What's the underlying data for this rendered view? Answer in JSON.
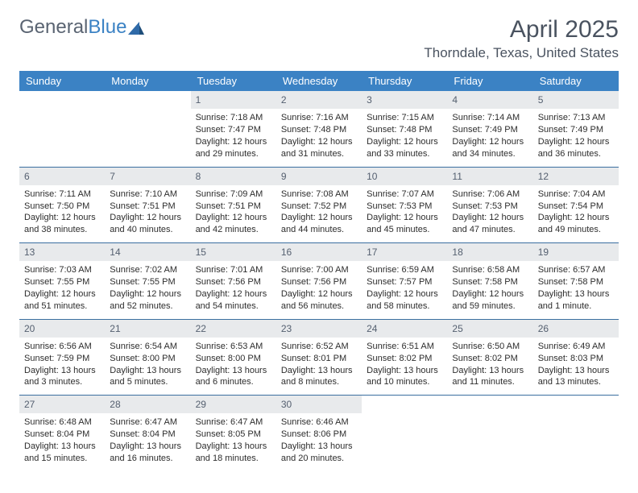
{
  "logo": {
    "general": "General",
    "blue": "Blue"
  },
  "title": {
    "month": "April 2025",
    "location": "Thorndale, Texas, United States"
  },
  "dayNames": [
    "Sunday",
    "Monday",
    "Tuesday",
    "Wednesday",
    "Thursday",
    "Friday",
    "Saturday"
  ],
  "colors": {
    "header_bg": "#3b82c4",
    "header_text": "#ffffff",
    "daynum_bg": "#e8eaec",
    "daynum_text": "#556070",
    "row_border": "#3b6fa0",
    "body_text": "#2d2d2d",
    "title_text": "#4a5360"
  },
  "weeks": [
    [
      null,
      null,
      {
        "n": "1",
        "sunrise": "Sunrise: 7:18 AM",
        "sunset": "Sunset: 7:47 PM",
        "day1": "Daylight: 12 hours",
        "day2": "and 29 minutes."
      },
      {
        "n": "2",
        "sunrise": "Sunrise: 7:16 AM",
        "sunset": "Sunset: 7:48 PM",
        "day1": "Daylight: 12 hours",
        "day2": "and 31 minutes."
      },
      {
        "n": "3",
        "sunrise": "Sunrise: 7:15 AM",
        "sunset": "Sunset: 7:48 PM",
        "day1": "Daylight: 12 hours",
        "day2": "and 33 minutes."
      },
      {
        "n": "4",
        "sunrise": "Sunrise: 7:14 AM",
        "sunset": "Sunset: 7:49 PM",
        "day1": "Daylight: 12 hours",
        "day2": "and 34 minutes."
      },
      {
        "n": "5",
        "sunrise": "Sunrise: 7:13 AM",
        "sunset": "Sunset: 7:49 PM",
        "day1": "Daylight: 12 hours",
        "day2": "and 36 minutes."
      }
    ],
    [
      {
        "n": "6",
        "sunrise": "Sunrise: 7:11 AM",
        "sunset": "Sunset: 7:50 PM",
        "day1": "Daylight: 12 hours",
        "day2": "and 38 minutes."
      },
      {
        "n": "7",
        "sunrise": "Sunrise: 7:10 AM",
        "sunset": "Sunset: 7:51 PM",
        "day1": "Daylight: 12 hours",
        "day2": "and 40 minutes."
      },
      {
        "n": "8",
        "sunrise": "Sunrise: 7:09 AM",
        "sunset": "Sunset: 7:51 PM",
        "day1": "Daylight: 12 hours",
        "day2": "and 42 minutes."
      },
      {
        "n": "9",
        "sunrise": "Sunrise: 7:08 AM",
        "sunset": "Sunset: 7:52 PM",
        "day1": "Daylight: 12 hours",
        "day2": "and 44 minutes."
      },
      {
        "n": "10",
        "sunrise": "Sunrise: 7:07 AM",
        "sunset": "Sunset: 7:53 PM",
        "day1": "Daylight: 12 hours",
        "day2": "and 45 minutes."
      },
      {
        "n": "11",
        "sunrise": "Sunrise: 7:06 AM",
        "sunset": "Sunset: 7:53 PM",
        "day1": "Daylight: 12 hours",
        "day2": "and 47 minutes."
      },
      {
        "n": "12",
        "sunrise": "Sunrise: 7:04 AM",
        "sunset": "Sunset: 7:54 PM",
        "day1": "Daylight: 12 hours",
        "day2": "and 49 minutes."
      }
    ],
    [
      {
        "n": "13",
        "sunrise": "Sunrise: 7:03 AM",
        "sunset": "Sunset: 7:55 PM",
        "day1": "Daylight: 12 hours",
        "day2": "and 51 minutes."
      },
      {
        "n": "14",
        "sunrise": "Sunrise: 7:02 AM",
        "sunset": "Sunset: 7:55 PM",
        "day1": "Daylight: 12 hours",
        "day2": "and 52 minutes."
      },
      {
        "n": "15",
        "sunrise": "Sunrise: 7:01 AM",
        "sunset": "Sunset: 7:56 PM",
        "day1": "Daylight: 12 hours",
        "day2": "and 54 minutes."
      },
      {
        "n": "16",
        "sunrise": "Sunrise: 7:00 AM",
        "sunset": "Sunset: 7:56 PM",
        "day1": "Daylight: 12 hours",
        "day2": "and 56 minutes."
      },
      {
        "n": "17",
        "sunrise": "Sunrise: 6:59 AM",
        "sunset": "Sunset: 7:57 PM",
        "day1": "Daylight: 12 hours",
        "day2": "and 58 minutes."
      },
      {
        "n": "18",
        "sunrise": "Sunrise: 6:58 AM",
        "sunset": "Sunset: 7:58 PM",
        "day1": "Daylight: 12 hours",
        "day2": "and 59 minutes."
      },
      {
        "n": "19",
        "sunrise": "Sunrise: 6:57 AM",
        "sunset": "Sunset: 7:58 PM",
        "day1": "Daylight: 13 hours",
        "day2": "and 1 minute."
      }
    ],
    [
      {
        "n": "20",
        "sunrise": "Sunrise: 6:56 AM",
        "sunset": "Sunset: 7:59 PM",
        "day1": "Daylight: 13 hours",
        "day2": "and 3 minutes."
      },
      {
        "n": "21",
        "sunrise": "Sunrise: 6:54 AM",
        "sunset": "Sunset: 8:00 PM",
        "day1": "Daylight: 13 hours",
        "day2": "and 5 minutes."
      },
      {
        "n": "22",
        "sunrise": "Sunrise: 6:53 AM",
        "sunset": "Sunset: 8:00 PM",
        "day1": "Daylight: 13 hours",
        "day2": "and 6 minutes."
      },
      {
        "n": "23",
        "sunrise": "Sunrise: 6:52 AM",
        "sunset": "Sunset: 8:01 PM",
        "day1": "Daylight: 13 hours",
        "day2": "and 8 minutes."
      },
      {
        "n": "24",
        "sunrise": "Sunrise: 6:51 AM",
        "sunset": "Sunset: 8:02 PM",
        "day1": "Daylight: 13 hours",
        "day2": "and 10 minutes."
      },
      {
        "n": "25",
        "sunrise": "Sunrise: 6:50 AM",
        "sunset": "Sunset: 8:02 PM",
        "day1": "Daylight: 13 hours",
        "day2": "and 11 minutes."
      },
      {
        "n": "26",
        "sunrise": "Sunrise: 6:49 AM",
        "sunset": "Sunset: 8:03 PM",
        "day1": "Daylight: 13 hours",
        "day2": "and 13 minutes."
      }
    ],
    [
      {
        "n": "27",
        "sunrise": "Sunrise: 6:48 AM",
        "sunset": "Sunset: 8:04 PM",
        "day1": "Daylight: 13 hours",
        "day2": "and 15 minutes."
      },
      {
        "n": "28",
        "sunrise": "Sunrise: 6:47 AM",
        "sunset": "Sunset: 8:04 PM",
        "day1": "Daylight: 13 hours",
        "day2": "and 16 minutes."
      },
      {
        "n": "29",
        "sunrise": "Sunrise: 6:47 AM",
        "sunset": "Sunset: 8:05 PM",
        "day1": "Daylight: 13 hours",
        "day2": "and 18 minutes."
      },
      {
        "n": "30",
        "sunrise": "Sunrise: 6:46 AM",
        "sunset": "Sunset: 8:06 PM",
        "day1": "Daylight: 13 hours",
        "day2": "and 20 minutes."
      },
      null,
      null,
      null
    ]
  ]
}
